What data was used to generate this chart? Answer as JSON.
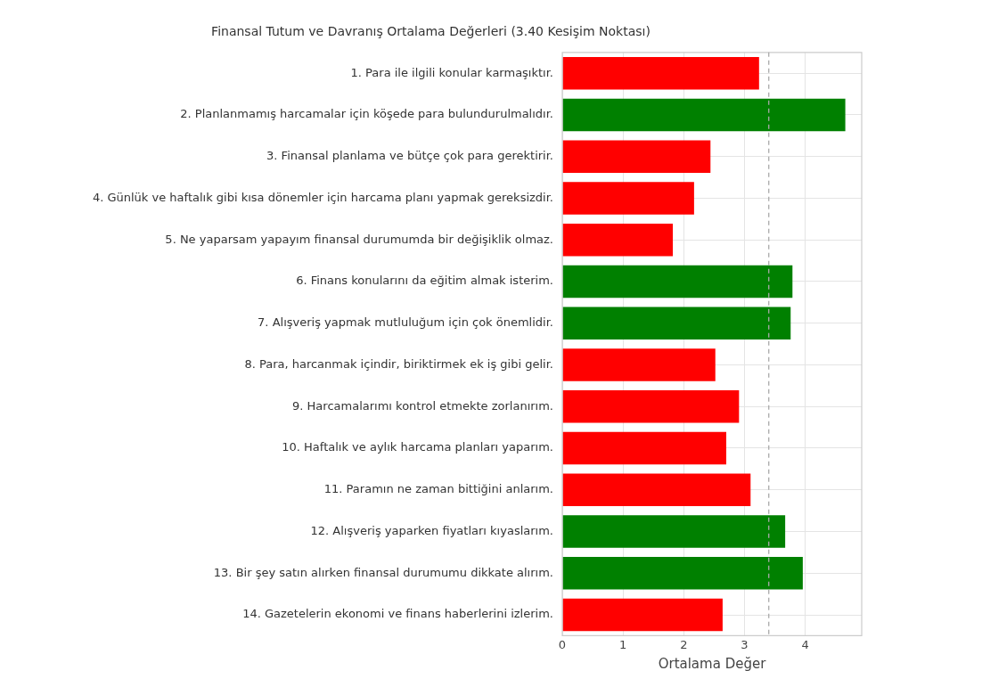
{
  "chart_data": {
    "type": "bar",
    "orientation": "horizontal",
    "title": "Finansal Tutum ve Davranış Ortalama Değerleri (3.40 Kesişim Noktası)",
    "xlabel": "Ortalama Değer",
    "categories": [
      "1. Para ile ilgili konular karmaşıktır.",
      "2. Planlanmamış harcamalar için köşede para bulundurulmalıdır.",
      "3. Finansal planlama ve bütçe çok para gerektirir.",
      "4. Günlük ve haftalık gibi kısa dönemler için harcama planı yapmak gereksizdir.",
      "5. Ne yaparsam yapayım finansal durumumda bir değişiklik olmaz.",
      "6. Finans konularını da eğitim almak isterim.",
      "7. Alışveriş yapmak mutluluğum için çok önemlidir.",
      "8. Para, harcanmak içindir, biriktirmek ek iş gibi gelir.",
      "9. Harcamalarımı kontrol etmekte zorlanırım.",
      "10. Haftalık ve aylık harcama planları yaparım.",
      "11. Paramın ne zaman bittiğini anlarım.",
      "12. Alışveriş yaparken fiyatları kıyaslarım.",
      "13. Bir şey satın alırken finansal durumumu dikkate alırım.",
      "14. Gazetelerin ekonomi ve finans haberlerini izlerim."
    ],
    "values": [
      3.24,
      4.66,
      2.44,
      2.17,
      1.82,
      3.79,
      3.76,
      2.52,
      2.91,
      2.7,
      3.1,
      3.67,
      3.96,
      2.64
    ],
    "colors": [
      "#ff0000",
      "#008000",
      "#ff0000",
      "#ff0000",
      "#ff0000",
      "#008000",
      "#008000",
      "#ff0000",
      "#ff0000",
      "#ff0000",
      "#ff0000",
      "#008000",
      "#008000",
      "#ff0000"
    ],
    "xlim": [
      0,
      4.93
    ],
    "xticks": [
      0,
      1,
      2,
      3,
      4
    ],
    "ref_lines": [
      {
        "axis": "x",
        "value": 3.4,
        "color": "#aaaaaa",
        "line_style": "dashed"
      }
    ],
    "grid": true,
    "legend": false
  }
}
